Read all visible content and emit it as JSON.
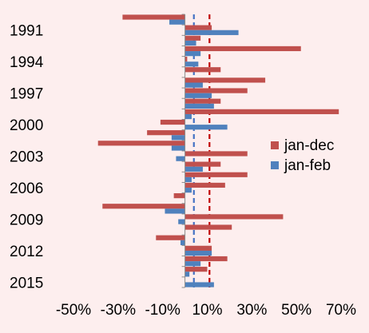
{
  "chart_data": {
    "type": "bar",
    "orientation": "horizontal",
    "title": "",
    "xlabel": "",
    "ylabel": "",
    "xlim": [
      -0.5,
      0.7
    ],
    "x_ticks": [
      "-50%",
      "-30%",
      "-10%",
      "10%",
      "30%",
      "50%",
      "70%"
    ],
    "x_tick_values": [
      -0.5,
      -0.3,
      -0.1,
      0.1,
      0.3,
      0.5,
      0.7
    ],
    "y_tick_labels": [
      "1991",
      "1994",
      "1997",
      "2000",
      "2003",
      "2006",
      "2009",
      "2012",
      "2015"
    ],
    "categories": [
      1990,
      1991,
      1992,
      1993,
      1994,
      1995,
      1996,
      1997,
      1998,
      1999,
      2000,
      2001,
      2002,
      2003,
      2004,
      2005,
      2006,
      2007,
      2008,
      2009,
      2010,
      2011,
      2012,
      2013,
      2014,
      2015
    ],
    "series": [
      {
        "name": "jan-dec",
        "color": "#C0504D",
        "values": [
          -0.28,
          0.12,
          0.07,
          0.52,
          0.01,
          0.16,
          0.36,
          0.28,
          0.16,
          0.69,
          -0.11,
          -0.17,
          -0.39,
          0.28,
          0.16,
          0.28,
          0.18,
          -0.05,
          -0.37,
          0.44,
          0.21,
          -0.13,
          0.12,
          0.19,
          0.1,
          0.0
        ]
      },
      {
        "name": "jan-feb",
        "color": "#4F81BD",
        "values": [
          -0.07,
          0.24,
          0.05,
          0.07,
          0.06,
          0.0,
          0.08,
          0.12,
          0.13,
          0.03,
          0.19,
          -0.06,
          -0.06,
          -0.04,
          0.08,
          0.03,
          0.03,
          0.0,
          -0.09,
          -0.03,
          0.0,
          -0.02,
          0.12,
          0.07,
          0.02,
          0.13
        ]
      }
    ],
    "reference_lines": [
      {
        "value": 0.11,
        "color": "#C00000",
        "style": "dashed"
      },
      {
        "value": 0.04,
        "color": "#4472C4",
        "style": "dashed"
      }
    ],
    "legend": {
      "position": "right",
      "entries": [
        "jan-dec",
        "jan-feb"
      ]
    },
    "grid": false
  }
}
